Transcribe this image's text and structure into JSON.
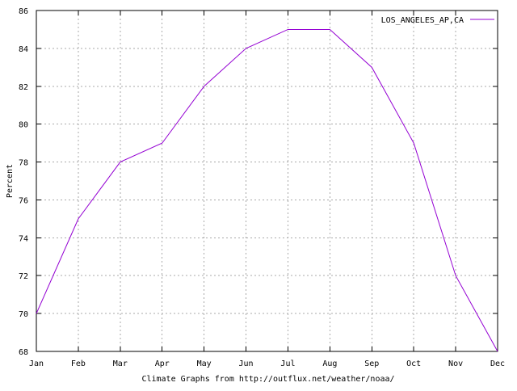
{
  "chart": {
    "caption": "Climate Graphs from http://outflux.net/weather/noaa/",
    "legend": {
      "label": "LOS_ANGELES_AP,CA"
    },
    "colors": {
      "line": "#9400d3",
      "grid": "#a9a9a9",
      "axis": "#000000",
      "text": "#000000",
      "background": "#ffffff"
    }
  },
  "chart_data": {
    "type": "line",
    "title": "",
    "categories": [
      "Jan",
      "Feb",
      "Mar",
      "Apr",
      "May",
      "Jun",
      "Jul",
      "Aug",
      "Sep",
      "Oct",
      "Nov",
      "Dec"
    ],
    "series": [
      {
        "name": "LOS_ANGELES_AP,CA",
        "color": "#9400d3",
        "values": [
          70,
          75,
          78,
          79,
          82,
          84,
          85,
          85,
          83,
          79,
          72,
          68
        ]
      }
    ],
    "xlabel": "",
    "ylabel": "Percent",
    "ylim": [
      68,
      86
    ],
    "ytick_step": 2,
    "yticks": [
      68,
      70,
      72,
      74,
      76,
      78,
      80,
      82,
      84,
      86
    ],
    "grid": true,
    "legend_position": "top-right-inside"
  }
}
